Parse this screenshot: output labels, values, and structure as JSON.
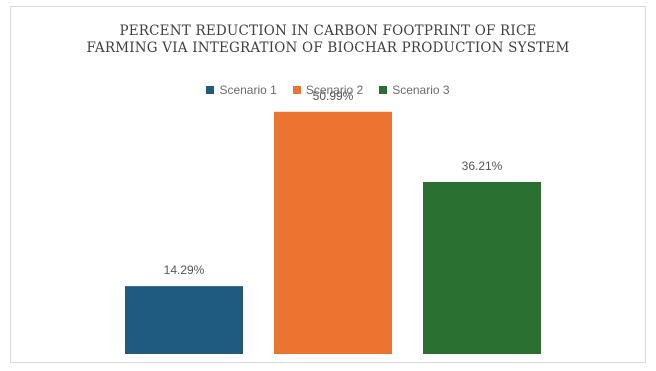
{
  "chart_data": {
    "type": "bar",
    "title": "PERCENT REDUCTION IN CARBON FOOTPRINT OF RICE",
    "title_line2": "FARMING VIA INTEGRATION OF BIOCHAR PRODUCTION SYSTEM",
    "categories": [
      "Scenario 1",
      "Scenario 2",
      "Scenario 3"
    ],
    "values": [
      14.29,
      50.99,
      36.21
    ],
    "labels": [
      "14.29%",
      "50.99%",
      "36.21%"
    ],
    "colors": [
      "#1f5b80",
      "#ec7330",
      "#2a7131"
    ],
    "ylim": [
      0,
      60
    ],
    "grid": false,
    "legend": "top",
    "xlabel": "",
    "ylabel": ""
  }
}
